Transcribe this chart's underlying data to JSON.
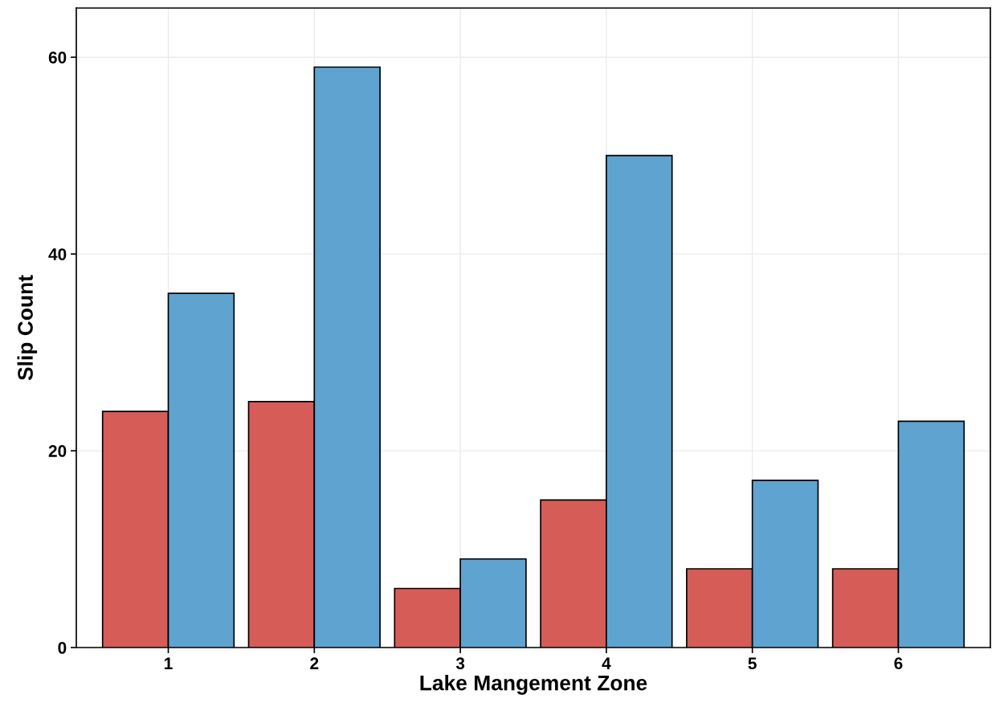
{
  "chart_data": {
    "type": "bar",
    "xlabel": "Lake Mangement Zone",
    "ylabel": "Slip Count",
    "categories": [
      "1",
      "2",
      "3",
      "4",
      "5",
      "6"
    ],
    "series": [
      {
        "color": "#d65c58",
        "values": [
          24,
          25,
          6,
          15,
          8,
          8
        ]
      },
      {
        "color": "#5fa3d1",
        "values": [
          36,
          59,
          9,
          50,
          17,
          23
        ]
      }
    ],
    "ylim": [
      0,
      65
    ],
    "yticks": [
      0,
      20,
      40,
      60
    ],
    "grid": true
  }
}
